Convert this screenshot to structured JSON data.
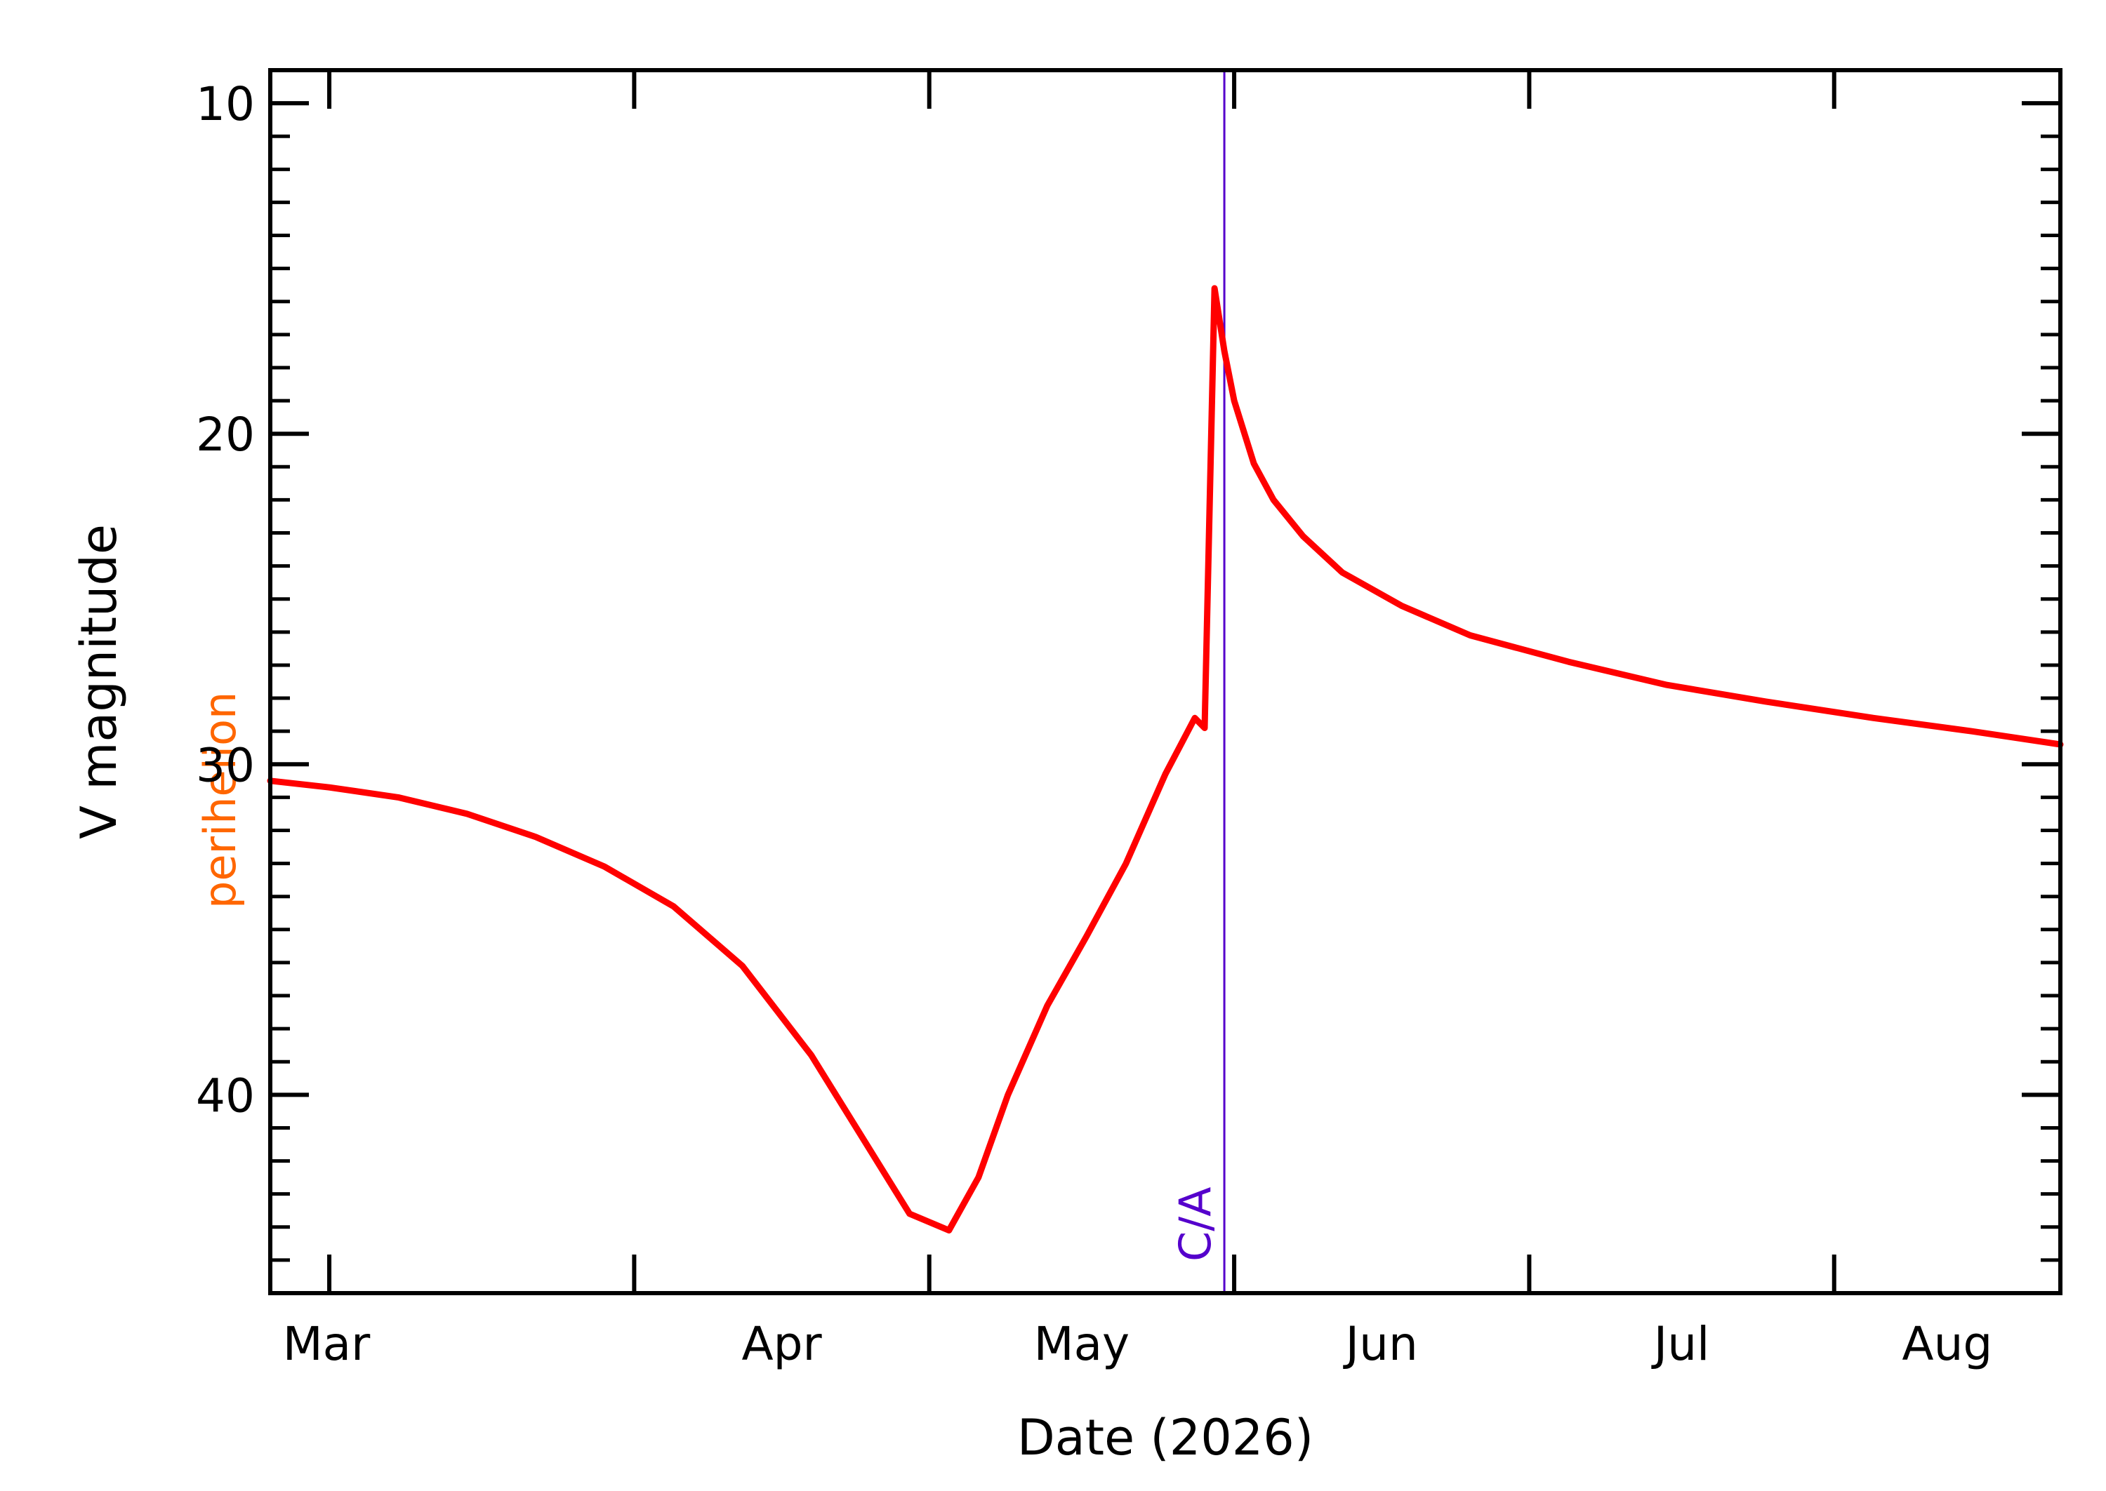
{
  "chart_data": {
    "type": "line",
    "title": "",
    "xlabel": "Date (2026)",
    "ylabel": "V magnitude",
    "x_range": [
      "2026-02-23",
      "2026-08-24"
    ],
    "ylim": [
      9,
      46
    ],
    "y_inverted": true,
    "y_major_ticks": [
      10,
      20,
      30,
      40
    ],
    "y_tick_labels": [
      "10",
      "20",
      "30",
      "40"
    ],
    "y_minor_tick_step": 1,
    "x_major_ticks": [
      "2026-03-01",
      "2026-04-01",
      "2026-05-01",
      "2026-06-01",
      "2026-07-01",
      "2026-08-01"
    ],
    "x_tick_labels": [
      "Mar",
      "Apr",
      "May",
      "Jun",
      "Jul",
      "Aug"
    ],
    "grid": false,
    "series_color": "#ff0000",
    "series": [
      {
        "x": [
          "2026-02-23",
          "2026-03-01",
          "2026-03-08",
          "2026-03-15",
          "2026-03-22",
          "2026-03-29",
          "2026-04-05",
          "2026-04-12",
          "2026-04-19",
          "2026-04-24",
          "2026-04-29",
          "2026-05-03",
          "2026-05-06",
          "2026-05-09",
          "2026-05-13",
          "2026-05-17",
          "2026-05-21",
          "2026-05-25",
          "2026-05-28",
          "2026-05-29",
          "2026-05-30",
          "2026-05-31",
          "2026-06-01",
          "2026-06-03",
          "2026-06-05",
          "2026-06-08",
          "2026-06-12",
          "2026-06-18",
          "2026-06-25",
          "2026-07-05",
          "2026-07-15",
          "2026-07-25",
          "2026-08-05",
          "2026-08-15",
          "2026-08-24"
        ],
        "values": [
          30.5,
          30.7,
          31.0,
          31.5,
          32.2,
          33.1,
          34.3,
          36.1,
          38.8,
          41.2,
          43.6,
          44.1,
          42.5,
          40.0,
          37.3,
          35.2,
          33.0,
          30.3,
          28.6,
          28.9,
          15.6,
          17.5,
          19.0,
          20.9,
          22.0,
          23.1,
          24.2,
          25.2,
          26.1,
          26.9,
          27.6,
          28.1,
          28.6,
          29.0,
          29.4
        ]
      }
    ],
    "markers": [
      {
        "label": "perihelion",
        "date": "2026-02-23",
        "color": "#ff6600"
      },
      {
        "label": "C/A",
        "date": "2026-05-31",
        "color": "#5500cc"
      }
    ]
  }
}
